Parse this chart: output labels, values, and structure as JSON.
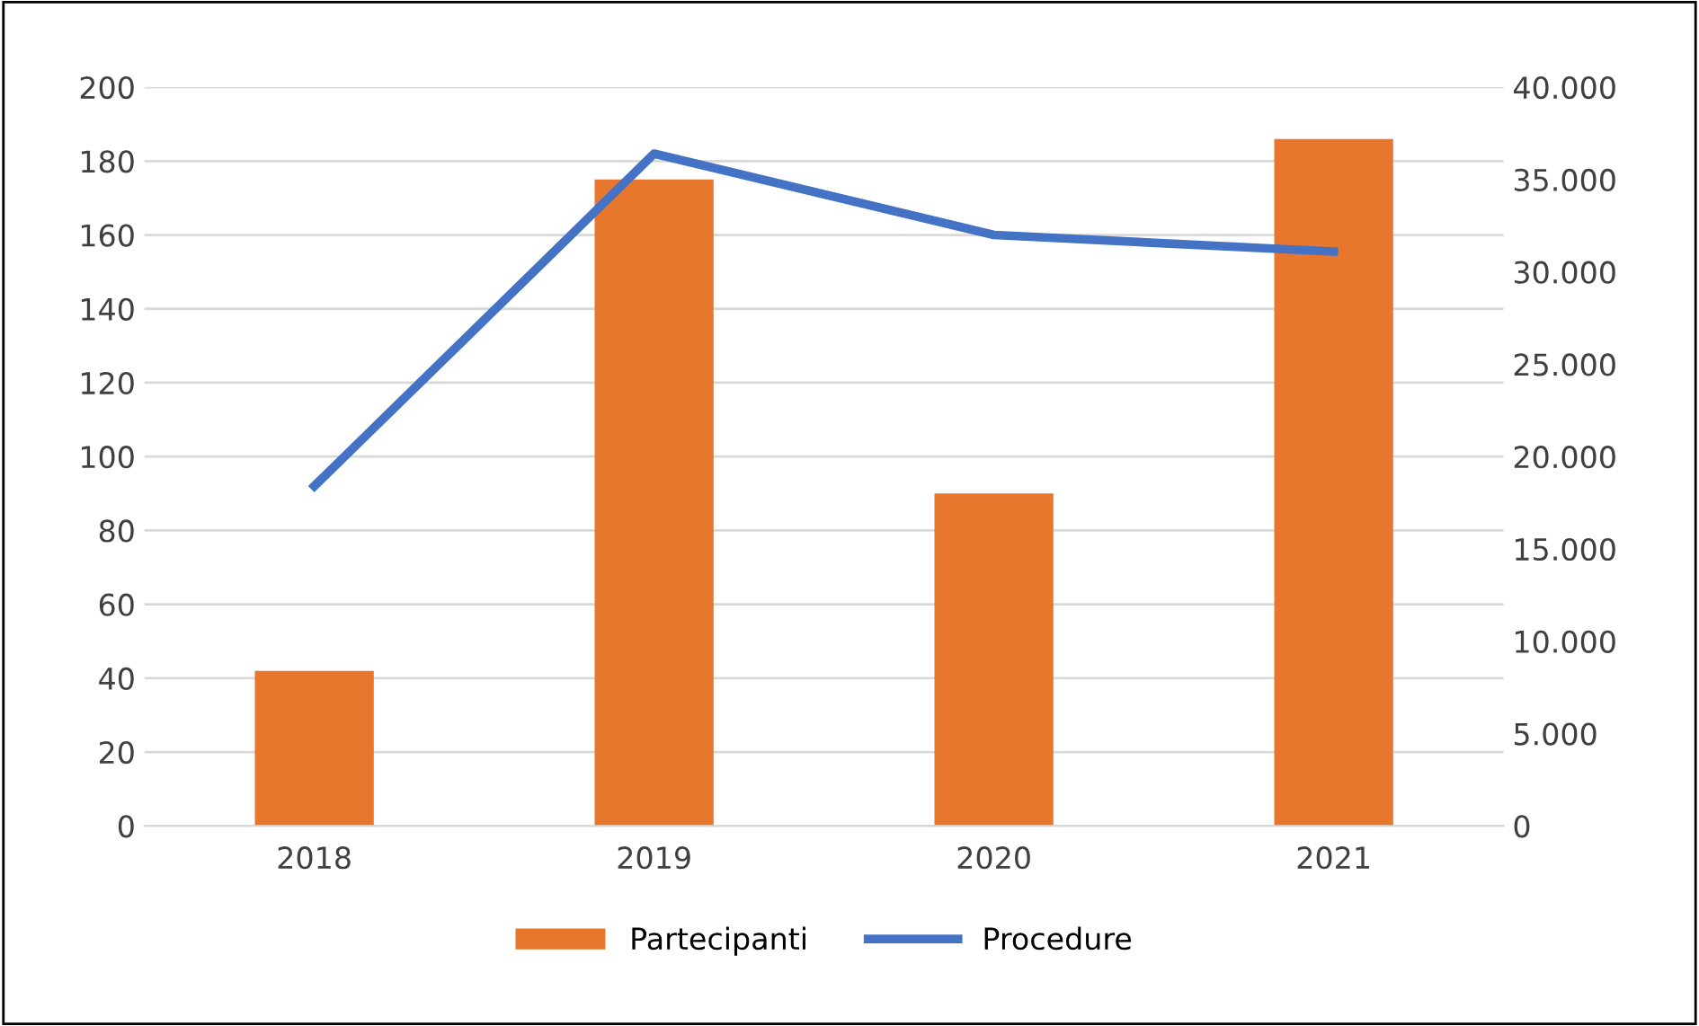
{
  "chart_data": {
    "type": "bar",
    "categories": [
      "2018",
      "2019",
      "2020",
      "2021"
    ],
    "series": [
      {
        "name": "Partecipanti",
        "color": "#e8772e",
        "values": [
          42,
          175,
          90,
          186
        ]
      },
      {
        "name": "Procedure",
        "type": "line",
        "axis": "y2",
        "color": "#4472c4",
        "values": [
          18400,
          36400,
          32000,
          31100
        ]
      }
    ],
    "ylim": [
      0,
      200
    ],
    "yticks": [
      0,
      20,
      40,
      60,
      80,
      100,
      120,
      140,
      160,
      180,
      200
    ],
    "y2lim": [
      0,
      40000
    ],
    "y2ticks": [
      0,
      {
        "value": 5000,
        "label": "5.000"
      },
      {
        "value": 10000,
        "label": "10.000"
      },
      {
        "value": 15000,
        "label": "15.000"
      },
      {
        "value": 20000,
        "label": "20.000"
      },
      {
        "value": 25000,
        "label": "25.000"
      },
      {
        "value": 30000,
        "label": "30.000"
      },
      {
        "value": 35000,
        "label": "35.000"
      },
      {
        "value": 40000,
        "label": "40.000"
      }
    ],
    "grid": "y",
    "legend": "bottom",
    "marker": "none",
    "line_style": "solid"
  }
}
